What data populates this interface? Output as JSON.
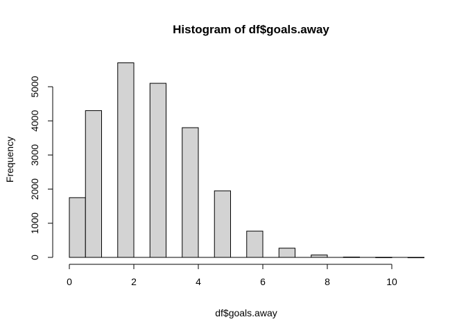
{
  "chart_data": {
    "type": "bar",
    "title": "Histogram of df$goals.away",
    "xlabel": "df$goals.away",
    "ylabel": "Frequency",
    "bins": [
      {
        "x0": 0.0,
        "x1": 0.5,
        "count": 1750
      },
      {
        "x0": 0.5,
        "x1": 1.0,
        "count": 4300
      },
      {
        "x0": 1.0,
        "x1": 1.5,
        "count": 0
      },
      {
        "x0": 1.5,
        "x1": 2.0,
        "count": 5700
      },
      {
        "x0": 2.0,
        "x1": 2.5,
        "count": 0
      },
      {
        "x0": 2.5,
        "x1": 3.0,
        "count": 5100
      },
      {
        "x0": 3.0,
        "x1": 3.5,
        "count": 0
      },
      {
        "x0": 3.5,
        "x1": 4.0,
        "count": 3800
      },
      {
        "x0": 4.0,
        "x1": 4.5,
        "count": 0
      },
      {
        "x0": 4.5,
        "x1": 5.0,
        "count": 1950
      },
      {
        "x0": 5.0,
        "x1": 5.5,
        "count": 0
      },
      {
        "x0": 5.5,
        "x1": 6.0,
        "count": 770
      },
      {
        "x0": 6.0,
        "x1": 6.5,
        "count": 0
      },
      {
        "x0": 6.5,
        "x1": 7.0,
        "count": 270
      },
      {
        "x0": 7.0,
        "x1": 7.5,
        "count": 0
      },
      {
        "x0": 7.5,
        "x1": 8.0,
        "count": 70
      },
      {
        "x0": 8.0,
        "x1": 8.5,
        "count": 0
      },
      {
        "x0": 8.5,
        "x1": 9.0,
        "count": 10
      },
      {
        "x0": 9.0,
        "x1": 9.5,
        "count": 0
      },
      {
        "x0": 9.5,
        "x1": 10.0,
        "count": 3
      },
      {
        "x0": 10.0,
        "x1": 10.5,
        "count": 0
      },
      {
        "x0": 10.5,
        "x1": 11.0,
        "count": 1
      }
    ],
    "xlim": [
      0,
      11
    ],
    "ylim": [
      0,
      5700
    ],
    "xticks": [
      "0",
      "2",
      "4",
      "6",
      "8",
      "10"
    ],
    "yticks": [
      "0",
      "1000",
      "2000",
      "3000",
      "4000",
      "5000"
    ],
    "grid": false,
    "colors": {
      "bar_fill": "#d3d3d3",
      "bar_stroke": "#000000"
    }
  }
}
